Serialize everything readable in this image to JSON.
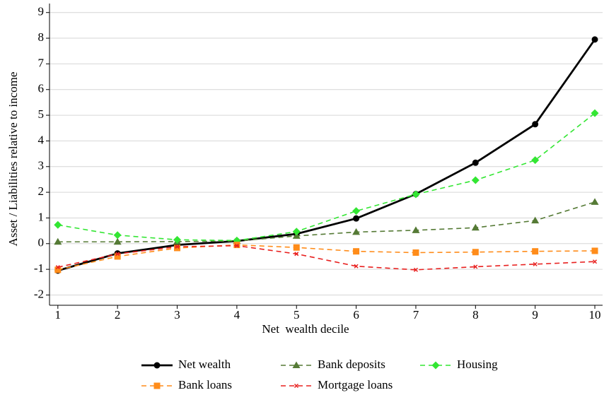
{
  "chart_data": {
    "type": "line",
    "xlabel": "Net  wealth decile",
    "ylabel": "Asset / Liabilities relative to income",
    "x": [
      1,
      2,
      3,
      4,
      5,
      6,
      7,
      8,
      9,
      10
    ],
    "xlim": [
      0.86,
      10.13
    ],
    "xticks": [
      1,
      2,
      3,
      4,
      5,
      6,
      7,
      8,
      9,
      10
    ],
    "ylim": [
      -2.4,
      9.35
    ],
    "yticks": [
      -2,
      -1,
      0,
      1,
      2,
      3,
      4,
      5,
      6,
      7,
      8,
      9
    ],
    "grid": true,
    "legend": "bottom",
    "series": [
      {
        "name": "Net wealth",
        "color": "#000000",
        "marker": "circle",
        "dash": false,
        "values": [
          -1.05,
          -0.38,
          -0.05,
          0.1,
          0.38,
          0.98,
          1.93,
          3.15,
          4.65,
          7.95
        ]
      },
      {
        "name": "Bank deposits",
        "color": "#557a35",
        "marker": "triangle",
        "dash": true,
        "values": [
          0.07,
          0.07,
          0.08,
          0.1,
          0.3,
          0.45,
          0.52,
          0.62,
          0.9,
          1.62
        ]
      },
      {
        "name": "Housing",
        "color": "#33e633",
        "marker": "diamond",
        "dash": true,
        "values": [
          0.73,
          0.33,
          0.15,
          0.12,
          0.47,
          1.27,
          1.92,
          2.47,
          3.25,
          5.08
        ]
      },
      {
        "name": "Bank loans",
        "color": "#ff8c1a",
        "marker": "square",
        "dash": true,
        "values": [
          -1.02,
          -0.5,
          -0.17,
          -0.05,
          -0.15,
          -0.3,
          -0.35,
          -0.33,
          -0.3,
          -0.28
        ]
      },
      {
        "name": "Mortgage loans",
        "color": "#e8201f",
        "marker": "cross",
        "dash": true,
        "values": [
          -0.92,
          -0.4,
          -0.12,
          -0.08,
          -0.4,
          -0.88,
          -1.02,
          -0.9,
          -0.8,
          -0.7
        ]
      }
    ]
  }
}
